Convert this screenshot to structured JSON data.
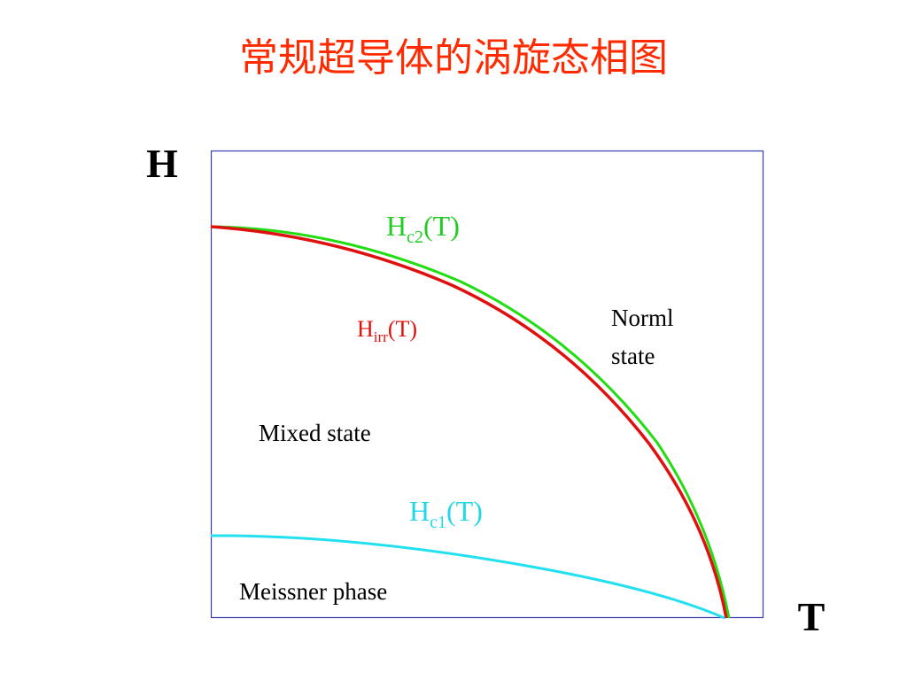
{
  "title": "常规超导体的涡旋态相图",
  "axes": {
    "y_label": "H",
    "x_label": "T"
  },
  "curves": {
    "hc2": {
      "main": "H",
      "sub": "c2",
      "tail": "(T)"
    },
    "hirr": {
      "main": "H",
      "sub": "irr",
      "tail": "(T)"
    },
    "hc1": {
      "main": "H",
      "sub": "c1",
      "tail": "(T)"
    }
  },
  "regions": {
    "normal": [
      "Norml",
      "state"
    ],
    "mixed": "Mixed state",
    "meissner": "Meissner phase"
  }
}
